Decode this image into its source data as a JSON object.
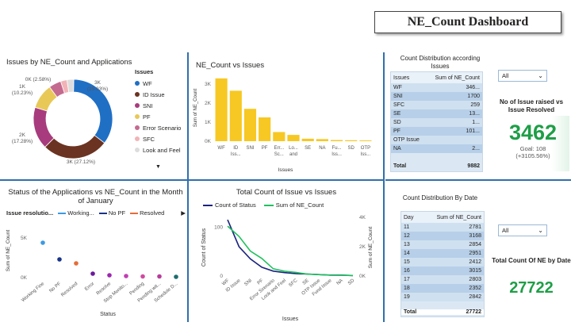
{
  "header": {
    "title": "NE_Count Dashboard"
  },
  "donut": {
    "title": "Issues by NE_Count and Applications",
    "legend_title": "Issues",
    "legend": [
      {
        "label": "WF",
        "color": "#1f6fc5"
      },
      {
        "label": "ID Issue",
        "color": "#6b3321"
      },
      {
        "label": "SNI",
        "color": "#a83b7d"
      },
      {
        "label": "PF",
        "color": "#e8c958"
      },
      {
        "label": "Error Scenario",
        "color": "#c56a8f"
      },
      {
        "label": "SFC",
        "color": "#f2b3b6"
      },
      {
        "label": "Look and Feel",
        "color": "#dddddd"
      }
    ],
    "labels": {
      "wf": "3K\n(35.03%)",
      "id": "3K (27.12%)",
      "sni": "2K\n(17.28%)",
      "left_top": "1K\n(10.23%)",
      "top": "0K (2.58%)"
    }
  },
  "chart_data": [
    {
      "type": "bar",
      "title": "NE_Count vs Issues",
      "xlabel": "Issues",
      "ylabel": "Sum of NE_Count",
      "ylim": [
        0,
        3500
      ],
      "yticks": [
        "3K",
        "2K",
        "1K",
        "0K"
      ],
      "categories": [
        "WF",
        "ID Iss...",
        "SNI",
        "PF",
        "Err... Sc...",
        "Lo... and Feel",
        "SE",
        "NA",
        "Fu... Iss...",
        "SD",
        "OTP Iss..."
      ],
      "values": [
        3300,
        2650,
        1700,
        1250,
        480,
        330,
        130,
        110,
        60,
        50,
        40
      ],
      "color": "#f7c823"
    },
    {
      "type": "scatter",
      "title": "Status of the Applications vs NE_Count in the Month of January",
      "xlabel": "Status",
      "ylabel": "Sum of NE_Count",
      "legend_title": "Issue resolutio...",
      "legend": [
        {
          "name": "Working...",
          "color": "#3c9be3"
        },
        {
          "name": "No PF",
          "color": "#18338a"
        },
        {
          "name": "Resolved",
          "color": "#e66c37"
        }
      ],
      "yticks": [
        "5K",
        "0K"
      ],
      "ylim": [
        0,
        6000
      ],
      "categories": [
        "Working Fine",
        "No PF",
        "Resolved",
        "Error",
        "Resolve",
        "Stop Monito...",
        "Pending",
        "Pending wit...",
        "Schedule D..."
      ],
      "values": [
        4400,
        2300,
        1800,
        500,
        300,
        200,
        150,
        150,
        100
      ],
      "colors": [
        "#3c9be3",
        "#18338a",
        "#e66c37",
        "#6a1b9a",
        "#9c27b0",
        "#c040b0",
        "#d04aa0",
        "#b73b9a",
        "#1d6d6d"
      ]
    },
    {
      "type": "line",
      "title": "Total Count of Issue vs Issues",
      "xlabel": "Issues",
      "ylabel": "Count of Status",
      "ylabel_right": "Sum of NE_Count",
      "yticks_left": [
        "100",
        "0"
      ],
      "yticks_right": [
        "4K",
        "2K",
        "0K"
      ],
      "categories": [
        "WF",
        "ID Issue",
        "SNI",
        "PF",
        "Error Scenario",
        "Look and Feel",
        "SFC",
        "SE",
        "OTP Issue",
        "Fund Issue",
        "NA",
        "SD"
      ],
      "series": [
        {
          "name": "Count of Status",
          "color": "#1a237e",
          "values": [
            115,
            60,
            35,
            18,
            10,
            7,
            5,
            4,
            3,
            2,
            2,
            1
          ]
        },
        {
          "name": "Sum of NE_Count",
          "color": "#21c15f",
          "values": [
            3400,
            2700,
            1700,
            1200,
            500,
            330,
            250,
            130,
            100,
            60,
            50,
            40
          ]
        }
      ]
    }
  ],
  "issues_table": {
    "title": "Count Distribution according Issues",
    "headers": [
      "Issues",
      "Sum of NE_Count"
    ],
    "rows": [
      [
        "WF",
        "346..."
      ],
      [
        "SNI",
        "1700"
      ],
      [
        "SFC",
        "259"
      ],
      [
        "SE",
        "13..."
      ],
      [
        "SD",
        "1..."
      ],
      [
        "PF",
        "101..."
      ],
      [
        "OTP Issue",
        ""
      ],
      [
        "NA",
        "2..."
      ]
    ],
    "total_label": "Total",
    "total_value": "9882"
  },
  "kpi_issues": {
    "slicer": "All",
    "title": "No of Issue raised vs Issue Resolved",
    "value": "3462",
    "goal": "Goal: 108",
    "delta": "(+3105.56%)"
  },
  "date_table": {
    "title": "Count Distribution By Date",
    "headers": [
      "Day",
      "Sum of NE_Count"
    ],
    "rows": [
      [
        "11",
        "2781"
      ],
      [
        "12",
        "3168"
      ],
      [
        "13",
        "2854"
      ],
      [
        "14",
        "2951"
      ],
      [
        "15",
        "2412"
      ],
      [
        "16",
        "3015"
      ],
      [
        "17",
        "2803"
      ],
      [
        "18",
        "2352"
      ],
      [
        "19",
        "2842"
      ]
    ],
    "total_label": "Total",
    "total_value": "27722"
  },
  "kpi_date": {
    "slicer": "All",
    "title": "Total Count Of NE by Date",
    "value": "27722"
  }
}
